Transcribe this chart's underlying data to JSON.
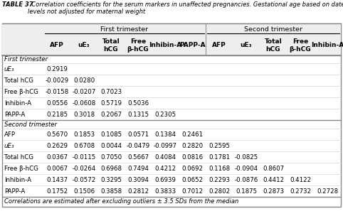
{
  "title_bold": "TABLE 37",
  "title_rest": "  Correlation coefficients for the serum markers in unaffected pregnancies. Gestational age based on dates (LMP). Marker\nlevels not adjusted for maternal weight",
  "footer": "Correlations are estimated after excluding outliers ± 3.5 SDs from the median",
  "col_labels": [
    "AFP",
    "uE₃",
    "Total\nhCG",
    "Free\nβ-hCG",
    "Inhibin-A",
    "PAPP-A",
    "AFP",
    "uE₃",
    "Total\nhCG",
    "Free\nβ-hCG",
    "Inhibin-A"
  ],
  "first_trimester_rows": [
    [
      "uE₃",
      "0.2919",
      "",
      "",
      "",
      "",
      "",
      "",
      "",
      "",
      "",
      ""
    ],
    [
      "Total hCG",
      "-0.0029",
      "0.0280",
      "",
      "",
      "",
      "",
      "",
      "",
      "",
      "",
      ""
    ],
    [
      "Free β-hCG",
      "-0.0158",
      "-0.0207",
      "0.7023",
      "",
      "",
      "",
      "",
      "",
      "",
      "",
      ""
    ],
    [
      "Inhibin-A",
      "0.0556",
      "-0.0608",
      "0.5719",
      "0.5036",
      "",
      "",
      "",
      "",
      "",
      "",
      ""
    ],
    [
      "PAPP-A",
      "0.2185",
      "0.3018",
      "0.2067",
      "0.1315",
      "0.2305",
      "",
      "",
      "",
      "",
      "",
      ""
    ]
  ],
  "second_trimester_rows": [
    [
      "AFP",
      "0.5670",
      "0.1853",
      "0.1085",
      "0.0571",
      "0.1384",
      "0.2461",
      "",
      "",
      "",
      "",
      ""
    ],
    [
      "uE₃",
      "0.2629",
      "0.6708",
      "0.0044",
      "-0.0479",
      "-0.0997",
      "0.2820",
      "0.2595",
      "",
      "",
      "",
      ""
    ],
    [
      "Total hCG",
      "0.0367",
      "-0.0115",
      "0.7050",
      "0.5667",
      "0.4084",
      "0.0816",
      "0.1781",
      "-0.0825",
      "",
      "",
      ""
    ],
    [
      "Free β-hCG",
      "0.0067",
      "-0.0264",
      "0.6968",
      "0.7494",
      "0.4212",
      "0.0692",
      "0.1168",
      "-0.0904",
      "0.8607",
      "",
      ""
    ],
    [
      "Inhibin-A",
      "0.1437",
      "-0.0572",
      "0.3295",
      "0.3094",
      "0.6939",
      "0.0652",
      "0.2293",
      "-0.0876",
      "0.4412",
      "0.4122",
      ""
    ],
    [
      "PAPP-A",
      "0.1752",
      "0.1506",
      "0.3858",
      "0.2812",
      "0.3833",
      "0.7012",
      "0.2802",
      "0.1875",
      "0.2873",
      "0.2732",
      "0.2728"
    ]
  ],
  "bg_color": "#ffffff",
  "table_bg": "#ffffff",
  "header_bg": "#eeeeee",
  "border_color": "#555555",
  "font_size_title": 6.0,
  "font_size_header": 6.8,
  "font_size_data": 6.2,
  "font_size_footer": 6.0
}
